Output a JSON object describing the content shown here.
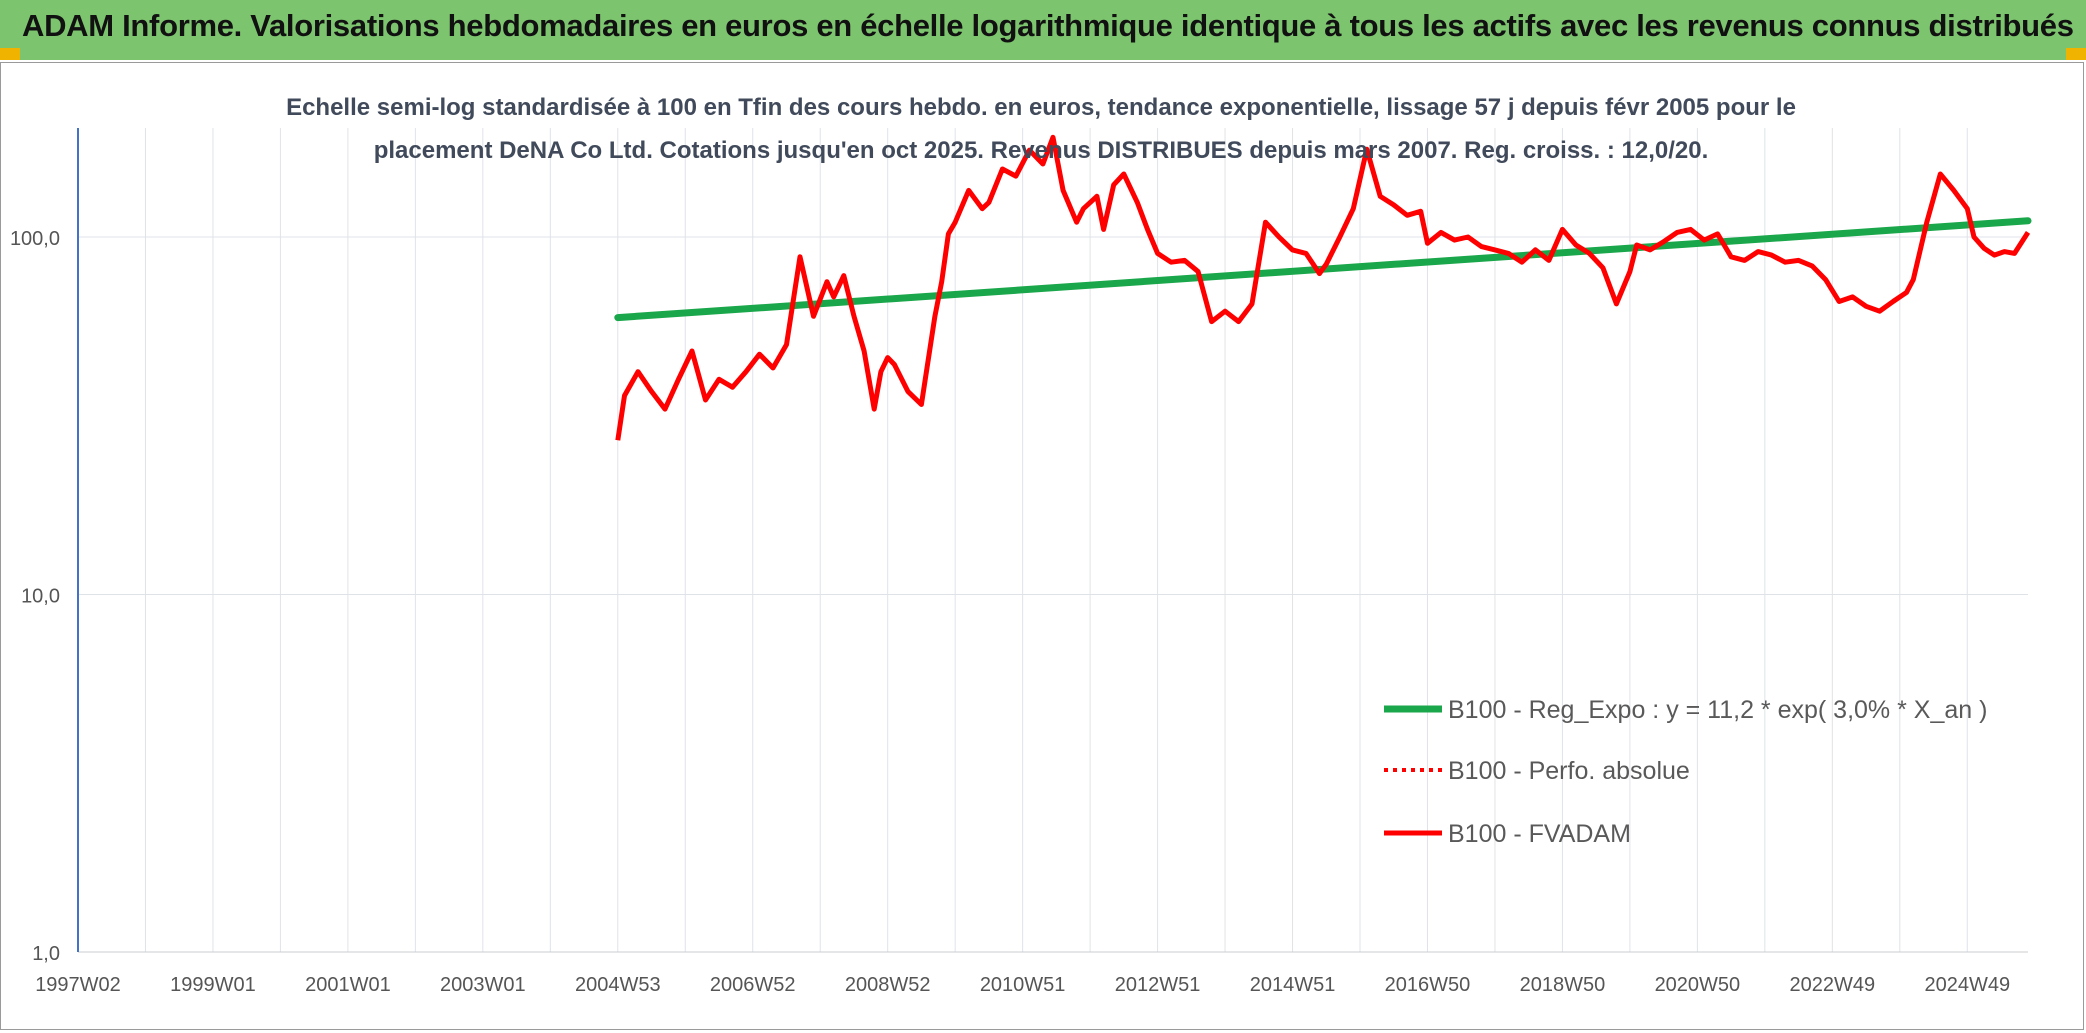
{
  "header": {
    "title": "ADAM Informe. Valorisations hebdomadaires en euros en échelle logarithmique identique à tous les actifs avec les revenus connus distribués"
  },
  "colors": {
    "header_bg": "#7dc46f",
    "corner_accent": "#f0b400",
    "trend_line": "#1aa64a",
    "price_line": "#ff0000",
    "grid": "#dfe3e8",
    "axis_text": "#555555"
  },
  "chart_data": {
    "type": "line",
    "title_line1": "Echelle semi-log standardisée à 100 en Tfin des cours hebdo. en euros, tendance exponentielle, lissage 57 j depuis févr 2005 pour le",
    "title_line2": "placement DeNA Co Ltd. Cotations jusqu'en oct 2025. Revenus DISTRIBUES depuis mars 2007. Reg. croiss. : 12,0/20.",
    "xlabel": "",
    "ylabel": "",
    "y_scale": "log",
    "ylim": [
      1,
      200
    ],
    "xlim": [
      1997.0,
      2025.9
    ],
    "y_ticks": [
      {
        "value": 1,
        "label": "1,0"
      },
      {
        "value": 10,
        "label": "10,0"
      },
      {
        "value": 100,
        "label": "100,0"
      }
    ],
    "x_ticks": [
      {
        "value": 1997.0,
        "label": "1997W02"
      },
      {
        "value": 1999.0,
        "label": "1999W01"
      },
      {
        "value": 2001.0,
        "label": "2001W01"
      },
      {
        "value": 2003.0,
        "label": "2003W01"
      },
      {
        "value": 2005.0,
        "label": "2004W53"
      },
      {
        "value": 2007.0,
        "label": "2006W52"
      },
      {
        "value": 2009.0,
        "label": "2008W52"
      },
      {
        "value": 2011.0,
        "label": "2010W51"
      },
      {
        "value": 2013.0,
        "label": "2012W51"
      },
      {
        "value": 2015.0,
        "label": "2014W51"
      },
      {
        "value": 2017.0,
        "label": "2016W50"
      },
      {
        "value": 2019.0,
        "label": "2018W50"
      },
      {
        "value": 2021.0,
        "label": "2020W50"
      },
      {
        "value": 2023.0,
        "label": "2022W49"
      },
      {
        "value": 2025.0,
        "label": "2024W49"
      }
    ],
    "grid": true,
    "legend_position": "right",
    "series": [
      {
        "name": "B100 - Reg_Expo : y = 11,2 * exp( 3,0% *  X_an )",
        "style": "solid-thick",
        "color": "#1aa64a",
        "x": [
          2005.0,
          2025.9
        ],
        "y": [
          59.5,
          111.0
        ]
      },
      {
        "name": "B100 - Perfo. absolue",
        "style": "dotted",
        "color": "#ff0000",
        "x": [],
        "y": []
      },
      {
        "name": "B100 - FVADAM",
        "style": "solid",
        "color": "#ff0000",
        "x": [
          2005.0,
          2005.1,
          2005.3,
          2005.5,
          2005.7,
          2005.9,
          2006.1,
          2006.3,
          2006.5,
          2006.7,
          2006.9,
          2007.1,
          2007.3,
          2007.5,
          2007.7,
          2007.9,
          2008.1,
          2008.2,
          2008.35,
          2008.5,
          2008.65,
          2008.8,
          2008.9,
          2009.0,
          2009.1,
          2009.3,
          2009.5,
          2009.7,
          2009.8,
          2009.9,
          2010.0,
          2010.2,
          2010.4,
          2010.5,
          2010.7,
          2010.9,
          2011.1,
          2011.3,
          2011.45,
          2011.6,
          2011.8,
          2011.9,
          2012.1,
          2012.2,
          2012.35,
          2012.5,
          2012.7,
          2012.85,
          2013.0,
          2013.2,
          2013.4,
          2013.6,
          2013.8,
          2014.0,
          2014.2,
          2014.4,
          2014.6,
          2014.8,
          2015.0,
          2015.2,
          2015.4,
          2015.5,
          2015.7,
          2015.9,
          2016.1,
          2016.3,
          2016.5,
          2016.7,
          2016.9,
          2017.0,
          2017.2,
          2017.4,
          2017.6,
          2017.8,
          2018.0,
          2018.2,
          2018.4,
          2018.6,
          2018.8,
          2019.0,
          2019.2,
          2019.4,
          2019.6,
          2019.8,
          2020.0,
          2020.1,
          2020.3,
          2020.5,
          2020.7,
          2020.9,
          2021.1,
          2021.3,
          2021.5,
          2021.7,
          2021.9,
          2022.1,
          2022.3,
          2022.5,
          2022.7,
          2022.9,
          2023.1,
          2023.3,
          2023.5,
          2023.7,
          2023.9,
          2024.1,
          2024.2,
          2024.4,
          2024.6,
          2024.8,
          2025.0,
          2025.1,
          2025.25,
          2025.4,
          2025.55,
          2025.7,
          2025.9
        ],
        "y": [
          27,
          36,
          42,
          37,
          33,
          40,
          48,
          35,
          40,
          38,
          42,
          47,
          43,
          50,
          88,
          60,
          75,
          68,
          78,
          60,
          48,
          33,
          42,
          46,
          44,
          37,
          34,
          60,
          75,
          102,
          110,
          135,
          120,
          125,
          155,
          148,
          175,
          160,
          190,
          135,
          110,
          120,
          130,
          105,
          140,
          150,
          125,
          105,
          90,
          85,
          86,
          80,
          58,
          62,
          58,
          65,
          110,
          100,
          92,
          90,
          79,
          84,
          100,
          120,
          176,
          130,
          123,
          115,
          118,
          96,
          103,
          98,
          100,
          94,
          92,
          90,
          85,
          92,
          86,
          105,
          95,
          90,
          82,
          65,
          80,
          95,
          92,
          97,
          103,
          105,
          98,
          102,
          88,
          86,
          91,
          89,
          85,
          86,
          83,
          76,
          66,
          68,
          64,
          62,
          66,
          70,
          76,
          110,
          150,
          135,
          120,
          100,
          93,
          89,
          91,
          90,
          103
        ]
      }
    ]
  }
}
